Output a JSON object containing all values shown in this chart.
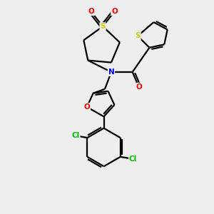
{
  "background_color": "#eeeeee",
  "bond_color": "#000000",
  "atom_colors": {
    "S": "#cccc00",
    "N": "#0000ff",
    "O": "#ff0000",
    "Cl": "#00bb00",
    "C": "#000000"
  },
  "figsize": [
    3.0,
    3.0
  ],
  "dpi": 100
}
